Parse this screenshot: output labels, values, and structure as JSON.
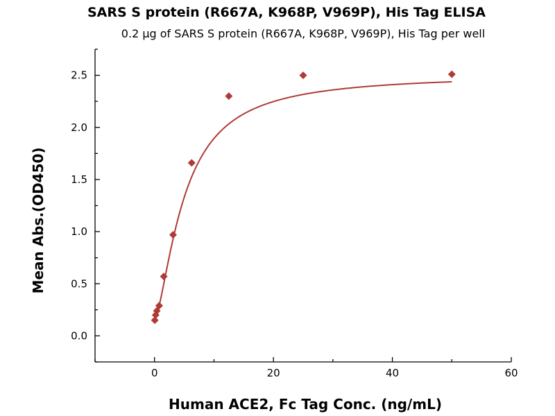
{
  "chart_data": {
    "type": "scatter",
    "title": "SARS S protein (R667A, K968P, V969P), His Tag ELISA",
    "subtitle": "0.2 µg of SARS S protein (R667A, K968P, V969P), His Tag per well",
    "xlabel": "Human ACE2, Fc Tag Conc. (ng/mL)",
    "ylabel": "Mean Abs.(OD450)",
    "xlim": [
      -10,
      60
    ],
    "ylim": [
      -0.25,
      2.75
    ],
    "x_ticks": [
      0,
      20,
      40,
      60
    ],
    "x_tick_labels": [
      "0",
      "20",
      "40",
      "60"
    ],
    "y_ticks": [
      0.0,
      0.5,
      1.0,
      1.5,
      2.0,
      2.5
    ],
    "y_tick_labels": [
      "0.0",
      "0.5",
      "1.0",
      "1.5",
      "2.0",
      "2.5"
    ],
    "grid": false,
    "legend": "none",
    "series": [
      {
        "x": [
          0.049,
          0.195,
          0.391,
          0.781,
          1.563,
          3.125,
          6.25,
          12.5,
          25,
          50
        ],
        "y": [
          0.15,
          0.2,
          0.24,
          0.29,
          0.57,
          0.97,
          1.66,
          2.3,
          2.5,
          2.51
        ],
        "color": "#b03a35",
        "marker": "diamond",
        "fit_curve": {
          "model": "4PL",
          "bottom": 0.15,
          "top": 2.51,
          "ec50": 5.0,
          "hill": 1.5
        }
      }
    ]
  }
}
